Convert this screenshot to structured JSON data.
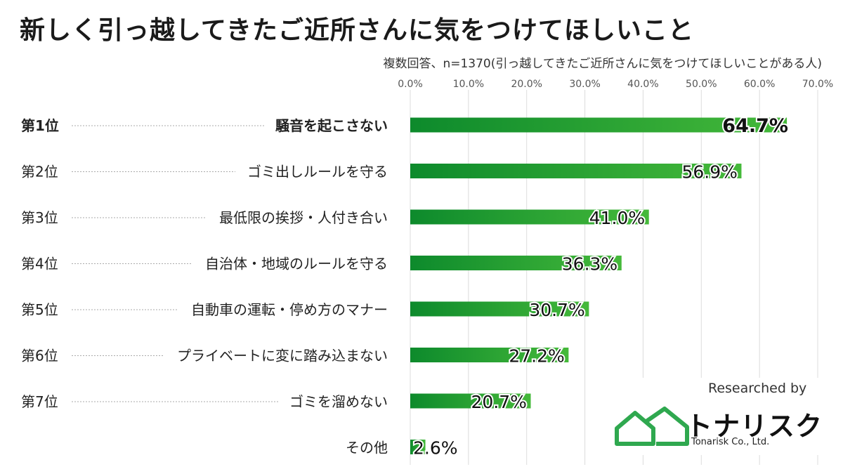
{
  "title": "新しく引っ越してきたご近所さんに気をつけてほしいこと",
  "subtitle": "複数回答、n=1370(引っ越してきたご近所さんに気をつけてほしいことがある人)",
  "chart_data": {
    "type": "bar",
    "orientation": "horizontal",
    "ranks": [
      "第1位",
      "第2位",
      "第3位",
      "第4位",
      "第5位",
      "第6位",
      "第7位",
      ""
    ],
    "categories": [
      "騒音を起こさない",
      "ゴミ出しルールを守る",
      "最低限の挨拶・人付き合い",
      "自治体・地域のルールを守る",
      "自動車の運転・停め方のマナー",
      "プライベートに変に踏み込まない",
      "ゴミを溜めない",
      "その他"
    ],
    "values": [
      64.7,
      56.9,
      41.0,
      36.3,
      30.7,
      27.2,
      20.7,
      2.6
    ],
    "data_labels": [
      "64.7%",
      "56.9%",
      "41.0%",
      "36.3%",
      "30.7%",
      "27.2%",
      "20.7%",
      "2.6%"
    ],
    "x_ticks": [
      0,
      10,
      20,
      30,
      40,
      50,
      60,
      70
    ],
    "x_tick_labels": [
      "0.0%",
      "10.0%",
      "20.0%",
      "30.0%",
      "40.0%",
      "50.0%",
      "60.0%",
      "70.0%"
    ],
    "xlim": [
      0,
      70
    ],
    "grid": true,
    "bar_color_start": "#0d8a2c",
    "bar_color_end": "#45b93a",
    "highlight_index": 0
  },
  "logo": {
    "researched_by": "Researched by",
    "brand": "トナリスク",
    "company": "Tonarisk Co., Ltd.",
    "color": "#2fa84f"
  }
}
